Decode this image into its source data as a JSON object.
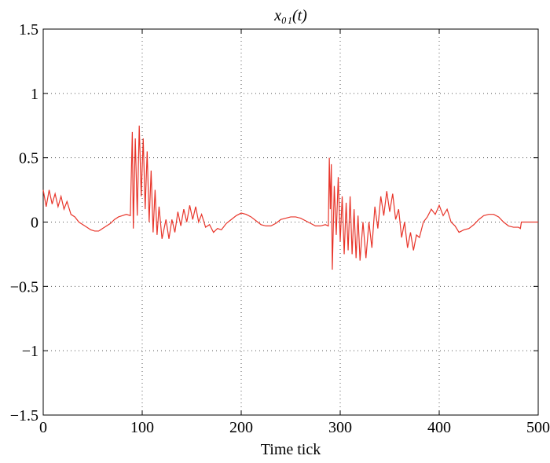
{
  "chart_data": {
    "type": "line",
    "title": "x₀₁(t)",
    "xlabel": "Time tick",
    "x": [
      0,
      3,
      6,
      9,
      12,
      15,
      18,
      21,
      24,
      28,
      32,
      36,
      40,
      44,
      48,
      52,
      56,
      60,
      64,
      68,
      72,
      76,
      80,
      84,
      88,
      90,
      91,
      93,
      95,
      97,
      99,
      101,
      103,
      105,
      107,
      109,
      111,
      113,
      115,
      117,
      120,
      124,
      127,
      130,
      133,
      136,
      139,
      142,
      145,
      148,
      151,
      154,
      157,
      160,
      164,
      168,
      172,
      176,
      180,
      185,
      190,
      195,
      200,
      205,
      210,
      215,
      220,
      225,
      230,
      235,
      240,
      245,
      250,
      255,
      260,
      265,
      270,
      275,
      280,
      285,
      288,
      289,
      290,
      291,
      292,
      294,
      296,
      298,
      300,
      302,
      304,
      306,
      308,
      310,
      312,
      314,
      316,
      318,
      320,
      323,
      326,
      329,
      332,
      335,
      338,
      341,
      344,
      347,
      350,
      353,
      356,
      359,
      362,
      365,
      368,
      371,
      374,
      377,
      380,
      384,
      388,
      392,
      396,
      400,
      404,
      408,
      412,
      416,
      420,
      425,
      430,
      435,
      440,
      445,
      450,
      455,
      460,
      465,
      470,
      475,
      480,
      482,
      483,
      500
    ],
    "series": [
      {
        "name": "x01",
        "color": "#e8352a",
        "values": [
          0.25,
          0.12,
          0.25,
          0.14,
          0.22,
          0.12,
          0.2,
          0.1,
          0.16,
          0.06,
          0.04,
          0.0,
          -0.02,
          -0.04,
          -0.06,
          -0.07,
          -0.07,
          -0.05,
          -0.03,
          -0.01,
          0.02,
          0.04,
          0.05,
          0.06,
          0.05,
          0.7,
          -0.05,
          0.65,
          0.05,
          0.75,
          0.2,
          0.65,
          0.1,
          0.55,
          0.0,
          0.4,
          -0.08,
          0.25,
          -0.1,
          0.12,
          -0.13,
          0.02,
          -0.13,
          0.02,
          -0.08,
          0.08,
          -0.03,
          0.1,
          0.0,
          0.13,
          0.02,
          0.12,
          0.0,
          0.06,
          -0.04,
          -0.02,
          -0.08,
          -0.05,
          -0.06,
          -0.01,
          0.02,
          0.05,
          0.07,
          0.06,
          0.04,
          0.01,
          -0.02,
          -0.03,
          -0.03,
          -0.01,
          0.02,
          0.03,
          0.04,
          0.04,
          0.03,
          0.01,
          -0.01,
          -0.03,
          -0.03,
          -0.02,
          -0.03,
          0.5,
          0.1,
          0.45,
          -0.37,
          0.28,
          -0.1,
          0.35,
          -0.15,
          0.2,
          -0.25,
          0.15,
          -0.22,
          0.2,
          -0.25,
          0.1,
          -0.28,
          0.05,
          -0.3,
          0.0,
          -0.28,
          0.0,
          -0.2,
          0.12,
          -0.05,
          0.2,
          0.05,
          0.24,
          0.08,
          0.22,
          0.02,
          0.1,
          -0.12,
          0.0,
          -0.2,
          -0.08,
          -0.22,
          -0.1,
          -0.12,
          0.0,
          0.04,
          0.1,
          0.06,
          0.13,
          0.05,
          0.1,
          0.0,
          -0.03,
          -0.08,
          -0.06,
          -0.05,
          -0.02,
          0.02,
          0.05,
          0.06,
          0.06,
          0.04,
          0.0,
          -0.03,
          -0.04,
          -0.04,
          -0.05,
          0.0,
          0.0
        ]
      }
    ],
    "xlim": [
      0,
      500
    ],
    "xticks": [
      0,
      100,
      200,
      300,
      400,
      500
    ],
    "ylim": [
      -1.5,
      1.5
    ],
    "yticks": [
      {
        "value": -1.5,
        "label": "−1.5"
      },
      {
        "value": -1,
        "label": "−1"
      },
      {
        "value": -0.5,
        "label": "−0.5"
      },
      0,
      0.5,
      1,
      1.5
    ],
    "grid": true
  }
}
